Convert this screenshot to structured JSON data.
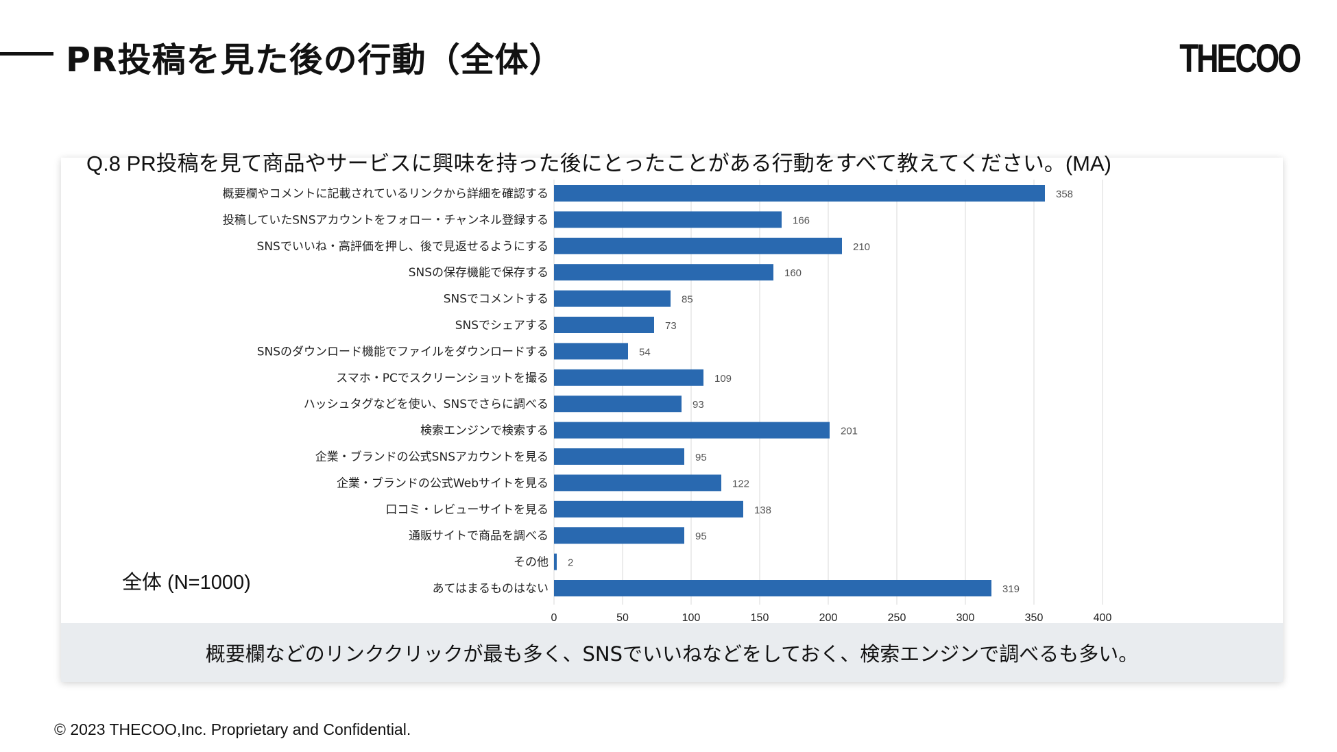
{
  "slide": {
    "title": "PR投稿を見た後の行動（全体）",
    "logo": "THECOO",
    "question": "Q.8 PR投稿を見て商品やサービスに興味を持った後にとったことがある行動をすべて教えてください。(MA)",
    "total_label": "全体 (N=1000)",
    "summary": "概要欄などのリンククリックが最も多く、SNSでいいねなどをしておく、検索エンジンで調べるも多い。",
    "footer": "© 2023 THECOO,Inc. Proprietary and Confidential."
  },
  "colors": {
    "bar": "#2969b0",
    "grid": "#d8d8d8",
    "band": "#e9ecef"
  },
  "chart_data": {
    "type": "bar",
    "orientation": "horizontal",
    "title": "Q.8 PR投稿を見て商品やサービスに興味を持った後にとったことがある行動をすべて教えてください。(MA)",
    "xlabel": "",
    "ylabel": "",
    "xlim": [
      0,
      400
    ],
    "xticks": [
      0,
      50,
      100,
      150,
      200,
      250,
      300,
      350,
      400
    ],
    "grid": true,
    "categories": [
      "概要欄やコメントに記載されているリンクから詳細を確認する",
      "投稿していたSNSアカウントをフォロー・チャンネル登録する",
      "SNSでいいね・高評価を押し、後で見返せるようにする",
      "SNSの保存機能で保存する",
      "SNSでコメントする",
      "SNSでシェアする",
      "SNSのダウンロード機能でファイルをダウンロードする",
      "スマホ・PCでスクリーンショットを撮る",
      "ハッシュタグなどを使い、SNSでさらに調べる",
      "検索エンジンで検索する",
      "企業・ブランドの公式SNSアカウントを見る",
      "企業・ブランドの公式Webサイトを見る",
      "口コミ・レビューサイトを見る",
      "通販サイトで商品を調べる",
      "その他",
      "あてはまるものはない"
    ],
    "values": [
      358,
      166,
      210,
      160,
      85,
      73,
      54,
      109,
      93,
      201,
      95,
      122,
      138,
      95,
      2,
      319
    ]
  }
}
